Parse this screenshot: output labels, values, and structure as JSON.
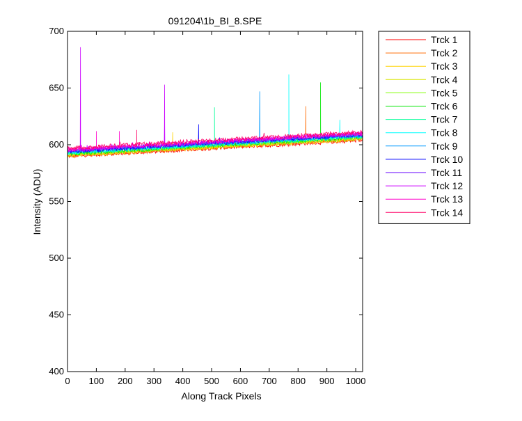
{
  "chart_data": {
    "type": "line",
    "title": "091204\\1b_BI_8.SPE",
    "xlabel": "Along Track Pixels",
    "ylabel": "Intensity (ADU)",
    "xlim": [
      0,
      1024
    ],
    "ylim": [
      400,
      700
    ],
    "xticks": [
      0,
      100,
      200,
      300,
      400,
      500,
      600,
      700,
      800,
      900,
      1000
    ],
    "yticks": [
      400,
      450,
      500,
      550,
      600,
      650,
      700
    ],
    "grid": false,
    "legend_position": "outside-top-right",
    "series": [
      {
        "name": "Trck 1",
        "color": "#ff0000",
        "start": 590,
        "end": 604,
        "noise": 1.8,
        "spikes": []
      },
      {
        "name": "Trck 2",
        "color": "#ff6a00",
        "start": 590,
        "end": 605,
        "noise": 1.8,
        "spikes": [
          [
            827,
            634
          ]
        ]
      },
      {
        "name": "Trck 3",
        "color": "#ffd400",
        "start": 591,
        "end": 605,
        "noise": 1.8,
        "spikes": [
          [
            365,
            611
          ]
        ]
      },
      {
        "name": "Trck 4",
        "color": "#d9e600",
        "start": 591,
        "end": 606,
        "noise": 1.8,
        "spikes": []
      },
      {
        "name": "Trck 5",
        "color": "#7fff00",
        "start": 592,
        "end": 606,
        "noise": 1.8,
        "spikes": []
      },
      {
        "name": "Trck 6",
        "color": "#00e600",
        "start": 592,
        "end": 607,
        "noise": 1.8,
        "spikes": [
          [
            878,
            655
          ]
        ]
      },
      {
        "name": "Trck 7",
        "color": "#00ff99",
        "start": 593,
        "end": 607,
        "noise": 1.8,
        "spikes": [
          [
            510,
            633
          ]
        ]
      },
      {
        "name": "Trck 8",
        "color": "#00ffff",
        "start": 593,
        "end": 608,
        "noise": 1.8,
        "spikes": [
          [
            768,
            662
          ],
          [
            945,
            622
          ]
        ]
      },
      {
        "name": "Trck 9",
        "color": "#0099ff",
        "start": 594,
        "end": 608,
        "noise": 1.8,
        "spikes": [
          [
            667,
            647
          ]
        ]
      },
      {
        "name": "Trck 10",
        "color": "#0000ff",
        "start": 594,
        "end": 609,
        "noise": 1.8,
        "spikes": [
          [
            455,
            618
          ]
        ]
      },
      {
        "name": "Trck 11",
        "color": "#6600ff",
        "start": 595,
        "end": 609,
        "noise": 1.8,
        "spikes": [
          [
            337,
            625
          ]
        ]
      },
      {
        "name": "Trck 12",
        "color": "#cc00ff",
        "start": 595,
        "end": 610,
        "noise": 1.8,
        "spikes": [
          [
            45,
            686
          ],
          [
            337,
            653
          ]
        ]
      },
      {
        "name": "Trck 13",
        "color": "#ff00cc",
        "start": 596,
        "end": 610,
        "noise": 1.8,
        "spikes": [
          [
            100,
            612
          ],
          [
            180,
            612
          ]
        ]
      },
      {
        "name": "Trck 14",
        "color": "#ff0066",
        "start": 597,
        "end": 611,
        "noise": 1.8,
        "spikes": [
          [
            240,
            613
          ]
        ]
      }
    ]
  }
}
